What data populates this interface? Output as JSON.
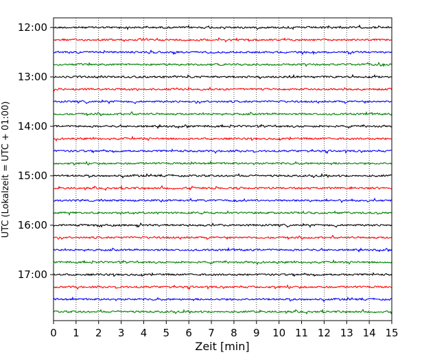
{
  "chart_data": {
    "type": "line",
    "title": "",
    "xlabel": "Zeit  [min]",
    "ylabel": "UTC (Lokalzeit = UTC + 01:00)",
    "xlim": [
      0,
      15
    ],
    "x_ticks": [
      "0",
      "1",
      "2",
      "3",
      "4",
      "5",
      "6",
      "7",
      "8",
      "9",
      "10",
      "11",
      "12",
      "13",
      "14",
      "15"
    ],
    "y_ticks": [
      "12:00",
      "13:00",
      "14:00",
      "15:00",
      "16:00",
      "17:00"
    ],
    "grid": "vertical dotted lines at each minute",
    "trace_color_cycle": [
      "#000000",
      "#ff0000",
      "#0000ff",
      "#008000"
    ],
    "row_interval_minutes": 15,
    "rows": [
      "12:00",
      "12:15",
      "12:30",
      "12:45",
      "13:00",
      "13:15",
      "13:30",
      "13:45",
      "14:00",
      "14:15",
      "14:30",
      "14:45",
      "15:00",
      "15:15",
      "15:30",
      "15:45",
      "16:00",
      "16:15",
      "16:30",
      "16:45",
      "17:00",
      "17:15",
      "17:30",
      "17:45"
    ]
  }
}
